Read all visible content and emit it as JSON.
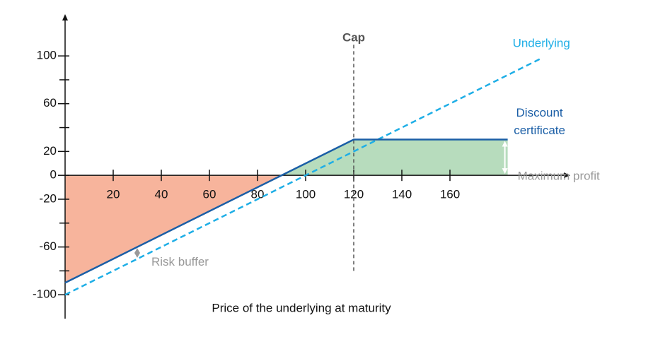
{
  "chart_data": {
    "type": "line",
    "x_label": "Price of the underlying at maturity",
    "xlim": [
      0,
      210
    ],
    "ylim": [
      -120,
      135
    ],
    "xticks": [
      20,
      40,
      60,
      80,
      100,
      120,
      140,
      160
    ],
    "yticks": [
      100,
      60,
      20,
      0,
      -20,
      -60,
      -100
    ],
    "yminor_ticks": [
      80,
      40,
      -40,
      -80
    ],
    "series": [
      {
        "name": "Underlying",
        "color": "#1eaee6",
        "dashed": true,
        "x": [
          0,
          198
        ],
        "values": [
          -100,
          98
        ]
      },
      {
        "name": "Discount certificate",
        "color": "#1a5ea6",
        "dashed": false,
        "x": [
          0,
          120,
          184
        ],
        "values": [
          -90,
          30,
          30
        ]
      }
    ],
    "cap": {
      "label": "Cap",
      "x": 120,
      "y_range": [
        -80,
        110
      ]
    },
    "annotations": {
      "max_profit": "Maximum profit",
      "risk_buffer": "Risk buffer"
    },
    "loss_color": "#f7b49c",
    "profit_color": "#b7dcbd"
  }
}
